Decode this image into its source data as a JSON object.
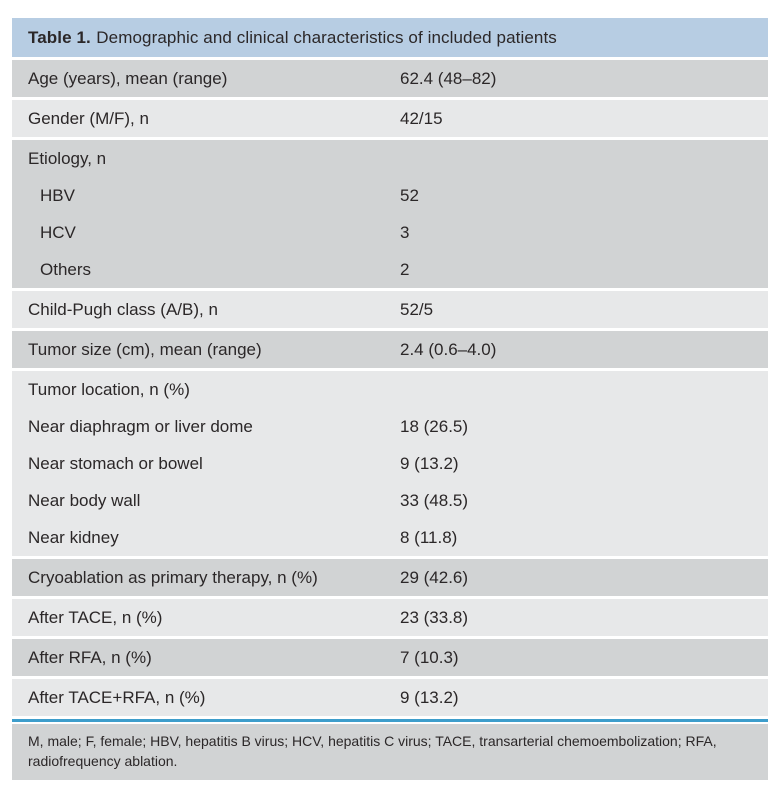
{
  "table": {
    "title_bold": "Table 1.",
    "title_rest": "Demographic and clinical characteristics of included patients",
    "blocks": [
      {
        "shade": "dark",
        "lines": [
          {
            "label": "Age (years), mean (range)",
            "value": "62.4 (48–82)",
            "indent": false
          }
        ]
      },
      {
        "shade": "light",
        "lines": [
          {
            "label": "Gender (M/F), n",
            "value": "42/15",
            "indent": false
          }
        ]
      },
      {
        "shade": "dark",
        "lines": [
          {
            "label": "Etiology, n",
            "value": "",
            "indent": false
          },
          {
            "label": "HBV",
            "value": "52",
            "indent": true
          },
          {
            "label": "HCV",
            "value": "3",
            "indent": true
          },
          {
            "label": "Others",
            "value": "2",
            "indent": true
          }
        ]
      },
      {
        "shade": "light",
        "lines": [
          {
            "label": "Child-Pugh class (A/B), n",
            "value": "52/5",
            "indent": false
          }
        ]
      },
      {
        "shade": "dark",
        "lines": [
          {
            "label": "Tumor size (cm), mean (range)",
            "value": "2.4 (0.6–4.0)",
            "indent": false
          }
        ]
      },
      {
        "shade": "light",
        "lines": [
          {
            "label": "Tumor location, n (%)",
            "value": "",
            "indent": false
          },
          {
            "label": "Near diaphragm or liver dome",
            "value": "18 (26.5)",
            "indent": false
          },
          {
            "label": "Near stomach or bowel",
            "value": "9 (13.2)",
            "indent": false
          },
          {
            "label": "Near body wall",
            "value": "33 (48.5)",
            "indent": false
          },
          {
            "label": "Near kidney",
            "value": "8 (11.8)",
            "indent": false
          }
        ]
      },
      {
        "shade": "dark",
        "lines": [
          {
            "label": "Cryoablation as primary therapy, n (%)",
            "value": "29 (42.6)",
            "indent": false
          }
        ]
      },
      {
        "shade": "light",
        "lines": [
          {
            "label": "After TACE, n (%)",
            "value": "23 (33.8)",
            "indent": false
          }
        ]
      },
      {
        "shade": "dark",
        "lines": [
          {
            "label": "After RFA, n (%)",
            "value": "7 (10.3)",
            "indent": false
          }
        ]
      },
      {
        "shade": "light",
        "lines": [
          {
            "label": "After TACE+RFA, n (%)",
            "value": "9 (13.2)",
            "indent": false
          }
        ]
      }
    ],
    "footnote": "M, male; F, female; HBV, hepatitis B virus; HCV, hepatitis C virus; TACE, transarterial chemoembolization; RFA, radiofrequency ablation.",
    "colors": {
      "header_blue": "#b7cde3",
      "row_dark": "#d1d3d4",
      "row_light": "#e7e8e9",
      "divider_blue": "#3d9dcb",
      "text": "#2b2728"
    }
  }
}
